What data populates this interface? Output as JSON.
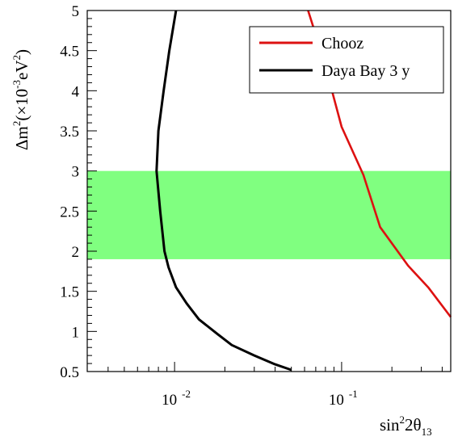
{
  "chart_data": {
    "type": "line",
    "xlabel": "sin²2θ₁₃",
    "ylabel": "Δm²(×10⁻³eV²)",
    "xscale": "log",
    "xlim": [
      0.003,
      0.45
    ],
    "ylim": [
      0.5,
      5
    ],
    "ytick_labels": [
      "0.5",
      "1",
      "1.5",
      "2",
      "2.5",
      "3",
      "3.5",
      "4",
      "4.5",
      "5"
    ],
    "xtick_labels": [
      {
        "value": 0.01,
        "base": "10",
        "exp": "-2"
      },
      {
        "value": 0.1,
        "base": "10",
        "exp": "-1"
      }
    ],
    "band": {
      "y_min": 1.9,
      "y_max": 3.0,
      "color": "#80ff80"
    },
    "legend_position": "top-right",
    "series": [
      {
        "name": "Chooz",
        "color": "#dd1111",
        "points": [
          [
            0.063,
            5.0
          ],
          [
            0.075,
            4.5
          ],
          [
            0.085,
            4.1
          ],
          [
            0.1,
            3.55
          ],
          [
            0.135,
            2.95
          ],
          [
            0.17,
            2.3
          ],
          [
            0.25,
            1.82
          ],
          [
            0.33,
            1.55
          ],
          [
            0.45,
            1.18
          ]
        ]
      },
      {
        "name": "Daya Bay 3 y",
        "color": "#000000",
        "points": [
          [
            0.0102,
            5.0
          ],
          [
            0.0093,
            4.5
          ],
          [
            0.0086,
            4.0
          ],
          [
            0.008,
            3.5
          ],
          [
            0.0078,
            3.0
          ],
          [
            0.0082,
            2.5
          ],
          [
            0.0087,
            2.0
          ],
          [
            0.0092,
            1.8
          ],
          [
            0.0102,
            1.55
          ],
          [
            0.0118,
            1.35
          ],
          [
            0.014,
            1.15
          ],
          [
            0.018,
            0.97
          ],
          [
            0.022,
            0.83
          ],
          [
            0.03,
            0.7
          ],
          [
            0.04,
            0.59
          ],
          [
            0.05,
            0.52
          ]
        ]
      }
    ]
  }
}
